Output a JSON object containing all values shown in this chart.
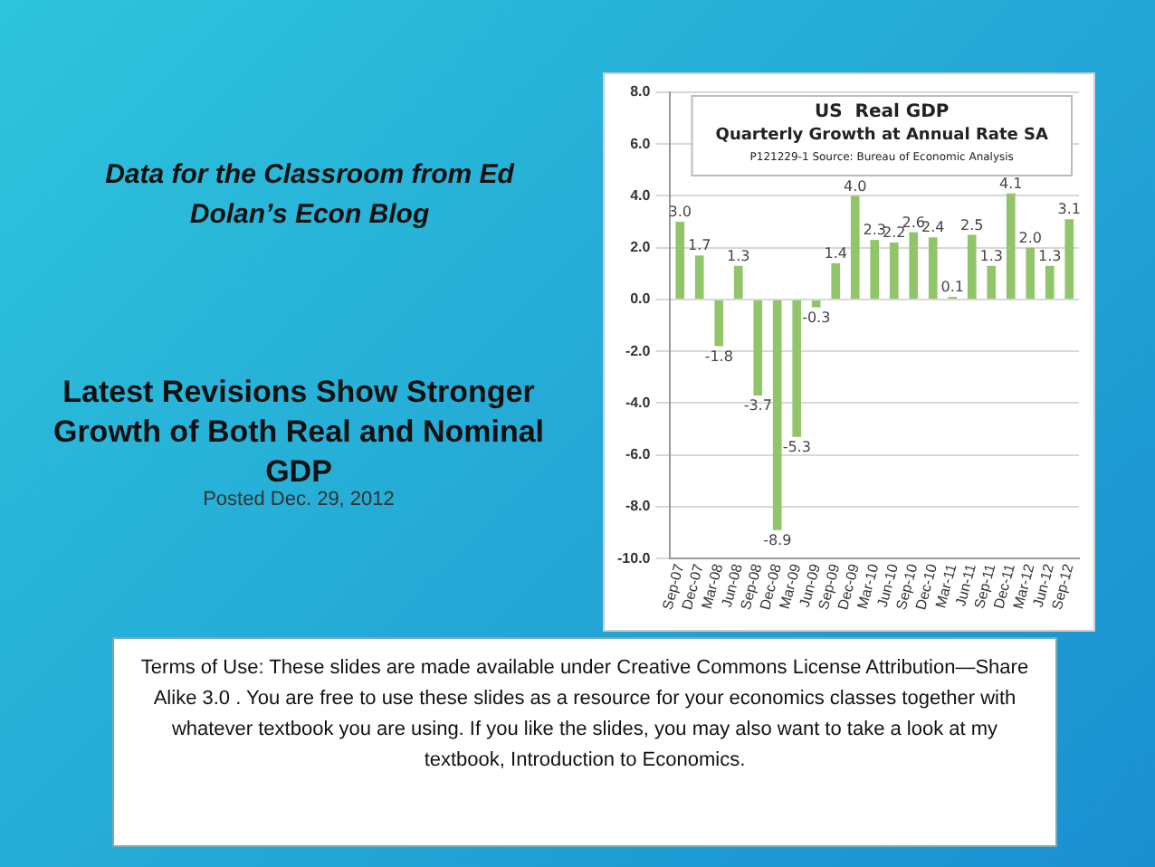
{
  "chart_data": {
    "type": "bar",
    "title": "US  Real GDP",
    "subtitle": "Quarterly Growth at Annual Rate SA",
    "annotations": [
      "P121229-1 Source: Bureau of Economic Analysis",
      "Data for the Classroom from Ed Dolan’s Econ Blog",
      "Latest Revisions Show Stronger Growth of Both Real and Nominal GDP",
      "Posted Dec. 29, 2012",
      "Terms of Use: These slides are made available under Creative Commons License Attribution—Share Alike 3.0 . You are free to use these slides as a resource for your economics classes together with whatever textbook you are using. If you like the slides, you may also want to take a look at my textbook, Introduction to Economics."
    ],
    "categories": [
      "Sep-07",
      "Dec-07",
      "Mar-08",
      "Jun-08",
      "Sep-08",
      "Dec-08",
      "Mar-09",
      "Jun-09",
      "Sep-09",
      "Dec-09",
      "Mar-10",
      "Jun-10",
      "Sep-10",
      "Dec-10",
      "Mar-11",
      "Jun-11",
      "Sep-11",
      "Dec-11",
      "Mar-12",
      "Jun-12",
      "Sep-12"
    ],
    "values": [
      3.0,
      1.7,
      -1.8,
      1.3,
      -3.7,
      -8.9,
      -5.3,
      -0.3,
      1.4,
      4.0,
      2.3,
      2.2,
      2.6,
      2.4,
      0.1,
      2.5,
      1.3,
      4.1,
      2.0,
      1.3,
      3.1
    ],
    "color": "#92c46a",
    "value_labels": [
      "3.0",
      "1.7",
      "-1.8",
      "1.3",
      "-3.7",
      "-8.9",
      "-5.3",
      "-0.3",
      "1.4",
      "4.0",
      "2.3",
      "2.2",
      "2.6",
      "2.4",
      "0.1",
      "2.5",
      "1.3",
      "4.1",
      "2.0",
      "1.3",
      "3.1"
    ],
    "ylim": [
      -10,
      8
    ],
    "yticks": [
      {
        "value": -10,
        "label": "-10.0"
      },
      {
        "value": -8,
        "label": "-8.0"
      },
      {
        "value": -6,
        "label": "-6.0"
      },
      {
        "value": -4,
        "label": "-4.0"
      },
      {
        "value": -2,
        "label": "-2.0"
      },
      {
        "value": 0,
        "label": "0.0"
      },
      {
        "value": 2,
        "label": "2.0"
      },
      {
        "value": 4,
        "label": "4.0"
      },
      {
        "value": 6,
        "label": "6.0"
      },
      {
        "value": 8,
        "label": "8.0"
      }
    ],
    "grid": "y"
  }
}
